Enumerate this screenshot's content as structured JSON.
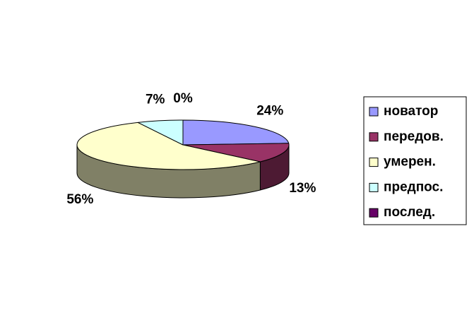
{
  "chart_data": {
    "type": "pie",
    "categories": [
      "новатор",
      "передов.",
      "умерен.",
      "предпос.",
      "послед."
    ],
    "values": [
      24,
      13,
      56,
      7,
      0
    ],
    "value_labels": [
      "24%",
      "13%",
      "56%",
      "7%",
      "0%"
    ],
    "colors": [
      "#9999ff",
      "#993366",
      "#ffffcc",
      "#ccffff",
      "#660066"
    ],
    "legend": "right"
  }
}
